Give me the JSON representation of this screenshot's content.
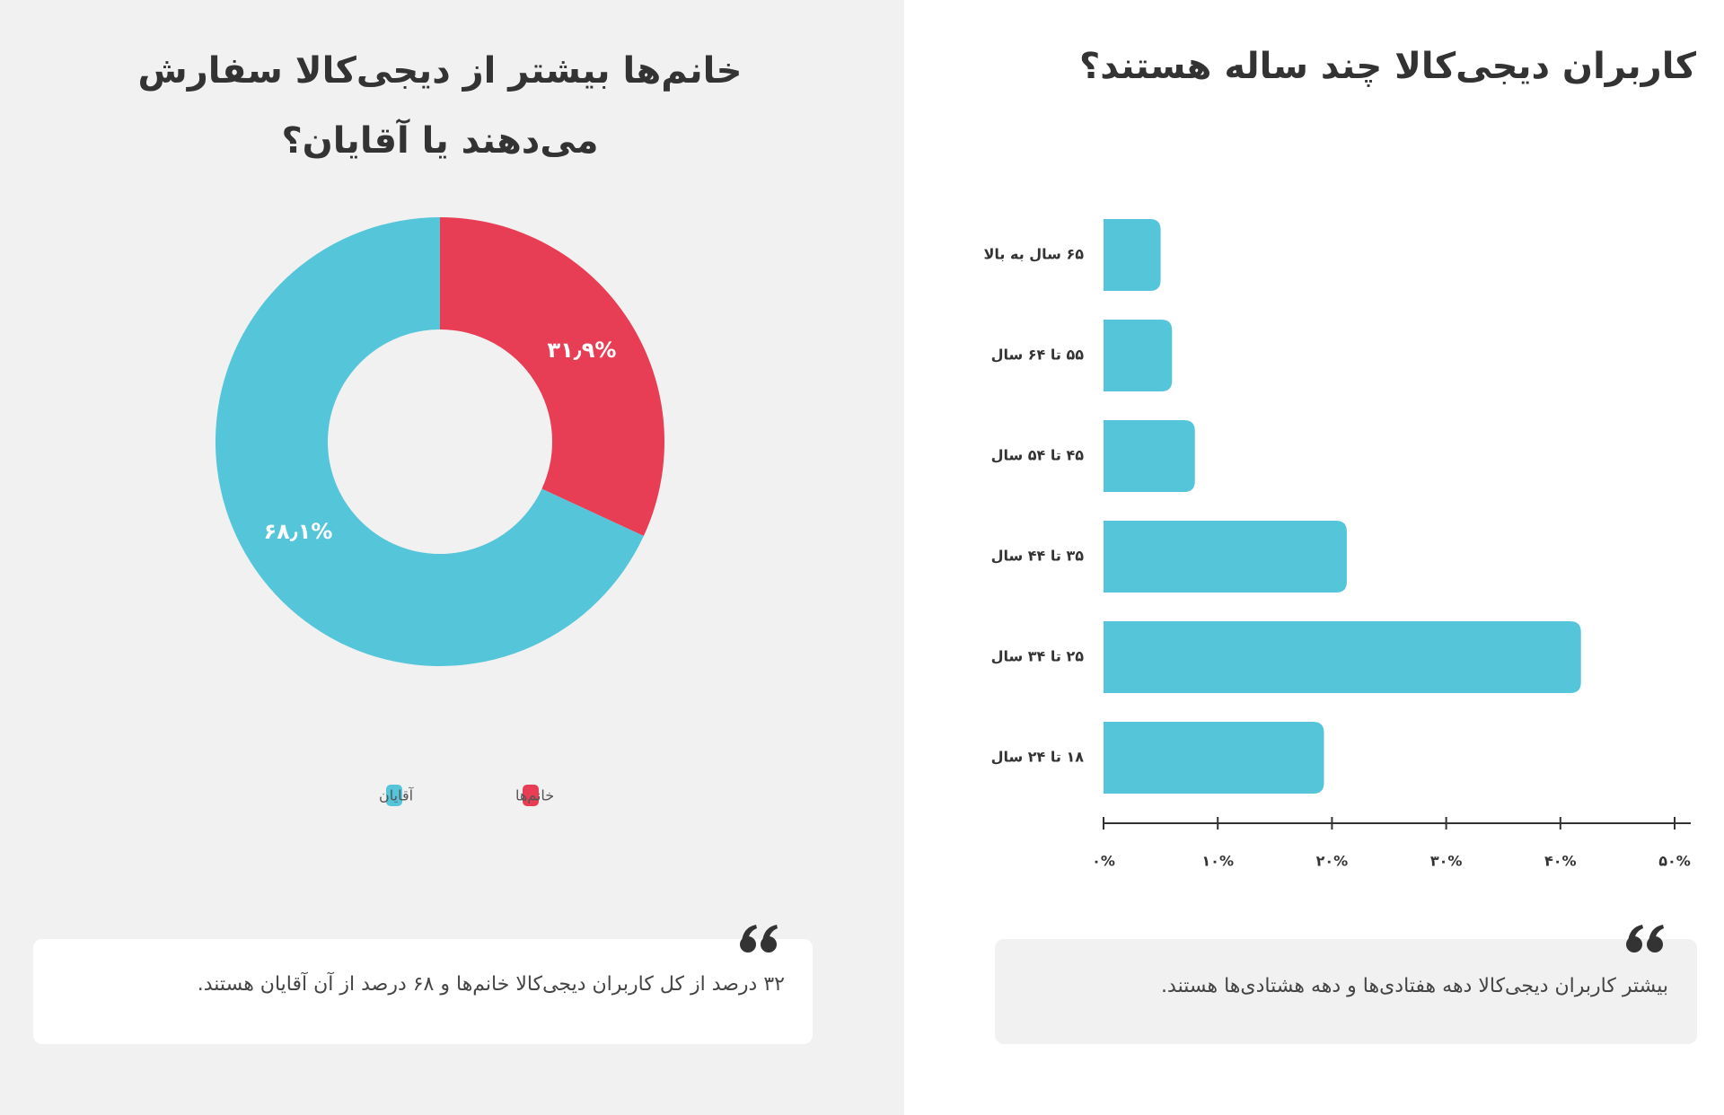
{
  "chart_data": [
    {
      "type": "donut",
      "title": "خانم‌ها بیشتر از دیجی‌کالا سفارش می‌دهند یا آقایان؟",
      "categories": [
        "خانم‌ها",
        "آقایان"
      ],
      "values": [
        31.9,
        68.1
      ],
      "value_labels": [
        "۳۱٫۹%",
        "۶۸٫۱%"
      ],
      "colors": [
        "#e83e55",
        "#55c5da"
      ],
      "annotation": "۳۲ درصد از کل کاربران دیجی‌کالا خانم‌ها و ۶۸ درصد از آن آقایان هستند."
    },
    {
      "type": "bar",
      "orientation": "horizontal",
      "title": "کاربران دیجی‌کالا چند ساله هستند؟",
      "categories": [
        "۶۵ سال به بالا",
        "۵۵ تا ۶۴ سال",
        "۴۵ تا ۵۴ سال",
        "۳۵ تا ۴۴ سال",
        "۲۵ تا ۳۴ سال",
        "۱۸ تا ۲۴ سال"
      ],
      "values": [
        5,
        6,
        8,
        21.3,
        41.8,
        19.3
      ],
      "color": "#55c5da",
      "xlim": [
        0,
        50
      ],
      "xticks": [
        {
          "value": 0,
          "label": "۰%"
        },
        {
          "value": 10,
          "label": "۱۰%"
        },
        {
          "value": 20,
          "label": "۲۰%"
        },
        {
          "value": 30,
          "label": "۳۰%"
        },
        {
          "value": 40,
          "label": "۴۰%"
        },
        {
          "value": 50,
          "label": "۵۰%"
        }
      ],
      "annotation": "بیشتر کاربران دیجی‌کالا دهه هفتادی‌ها و دهه هشتادی‌ها هستند."
    }
  ]
}
